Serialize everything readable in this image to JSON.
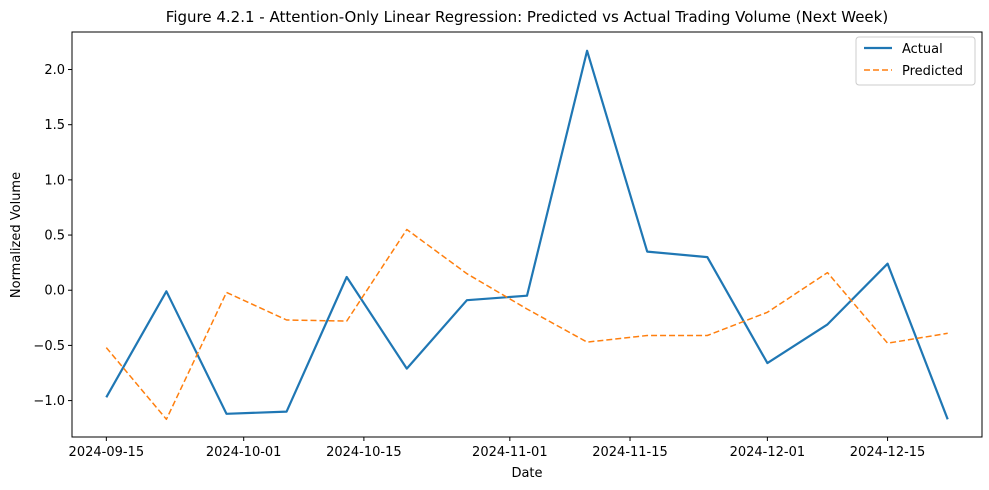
{
  "chart_data": {
    "type": "line",
    "title": "Figure 4.2.1 - Attention-Only Linear Regression: Predicted vs Actual Trading Volume (Next Week)",
    "xlabel": "Date",
    "ylabel": "Normalized Volume",
    "x": [
      "2024-09-15",
      "2024-09-22",
      "2024-09-29",
      "2024-10-06",
      "2024-10-13",
      "2024-10-20",
      "2024-10-27",
      "2024-11-03",
      "2024-11-10",
      "2024-11-17",
      "2024-11-24",
      "2024-12-01",
      "2024-12-08",
      "2024-12-15",
      "2024-12-22"
    ],
    "x_ticks": [
      "2024-09-15",
      "2024-10-01",
      "2024-10-15",
      "2024-11-01",
      "2024-11-15",
      "2024-12-01",
      "2024-12-15"
    ],
    "xlim": [
      "2024-09-11",
      "2024-12-26"
    ],
    "y_ticks": [
      -1.0,
      -0.5,
      0.0,
      0.5,
      1.0,
      1.5,
      2.0
    ],
    "y_tick_labels": [
      "−1.0",
      "−0.5",
      "0.0",
      "0.5",
      "1.0",
      "1.5",
      "2.0"
    ],
    "ylim": [
      -1.33,
      2.34
    ],
    "grid": false,
    "legend_position": "top-right",
    "series": [
      {
        "name": "Actual",
        "color": "#1f77b4",
        "style": "solid",
        "values": [
          -0.97,
          -0.01,
          -1.12,
          -1.1,
          0.12,
          -0.71,
          -0.09,
          -0.05,
          2.17,
          0.35,
          0.3,
          -0.66,
          -0.31,
          0.24,
          -1.17
        ]
      },
      {
        "name": "Predicted",
        "color": "#ff7f0e",
        "style": "dashed",
        "values": [
          -0.52,
          -1.17,
          -0.02,
          -0.27,
          -0.28,
          0.55,
          0.15,
          -0.17,
          -0.47,
          -0.41,
          -0.41,
          -0.2,
          0.16,
          -0.48,
          -0.39
        ]
      }
    ]
  }
}
